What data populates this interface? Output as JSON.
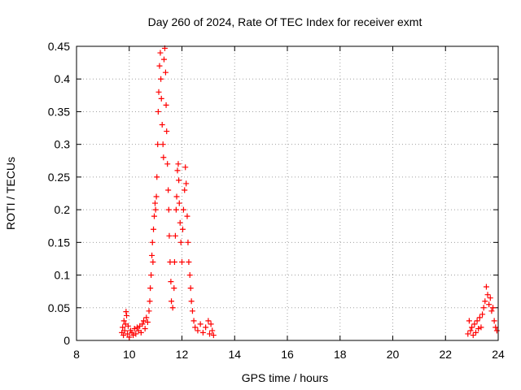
{
  "chart_data": {
    "type": "scatter",
    "title": "Day 260 of 2024, Rate Of TEC Index for receiver exmt",
    "xlabel": "GPS time / hours",
    "ylabel": "ROTI / TECUs",
    "xlim": [
      8,
      24
    ],
    "ylim": [
      0,
      0.45
    ],
    "xticks": [
      "8",
      "10",
      "12",
      "14",
      "16",
      "18",
      "20",
      "22",
      "24"
    ],
    "yticks": [
      "0",
      "0.05",
      "0.1",
      "0.15",
      "0.2",
      "0.25",
      "0.3",
      "0.35",
      "0.4",
      "0.45"
    ],
    "grid": true,
    "marker": "plus",
    "series": [
      {
        "color": "#ff0000",
        "points": [
          [
            9.72,
            0.012
          ],
          [
            9.75,
            0.02
          ],
          [
            9.78,
            0.008
          ],
          [
            9.8,
            0.03
          ],
          [
            9.83,
            0.015
          ],
          [
            9.86,
            0.025
          ],
          [
            9.88,
            0.044
          ],
          [
            9.9,
            0.038
          ],
          [
            9.93,
            0.01
          ],
          [
            9.96,
            0.022
          ],
          [
            10.0,
            0.005
          ],
          [
            10.05,
            0.015
          ],
          [
            10.1,
            0.012
          ],
          [
            10.15,
            0.008
          ],
          [
            10.2,
            0.018
          ],
          [
            10.25,
            0.01
          ],
          [
            10.3,
            0.02
          ],
          [
            10.35,
            0.015
          ],
          [
            10.4,
            0.022
          ],
          [
            10.45,
            0.012
          ],
          [
            10.5,
            0.025
          ],
          [
            10.55,
            0.03
          ],
          [
            10.6,
            0.018
          ],
          [
            10.65,
            0.035
          ],
          [
            10.7,
            0.028
          ],
          [
            10.75,
            0.045
          ],
          [
            10.78,
            0.06
          ],
          [
            10.8,
            0.08
          ],
          [
            10.83,
            0.1
          ],
          [
            10.86,
            0.13
          ],
          [
            10.88,
            0.15
          ],
          [
            10.9,
            0.12
          ],
          [
            10.92,
            0.17
          ],
          [
            10.95,
            0.19
          ],
          [
            10.98,
            0.21
          ],
          [
            11.0,
            0.2
          ],
          [
            11.03,
            0.22
          ],
          [
            11.05,
            0.25
          ],
          [
            11.08,
            0.3
          ],
          [
            11.1,
            0.35
          ],
          [
            11.12,
            0.38
          ],
          [
            11.15,
            0.42
          ],
          [
            11.18,
            0.44
          ],
          [
            11.2,
            0.4
          ],
          [
            11.22,
            0.37
          ],
          [
            11.25,
            0.33
          ],
          [
            11.28,
            0.3
          ],
          [
            11.3,
            0.28
          ],
          [
            11.32,
            0.43
          ],
          [
            11.35,
            0.447
          ],
          [
            11.38,
            0.41
          ],
          [
            11.4,
            0.36
          ],
          [
            11.42,
            0.32
          ],
          [
            11.45,
            0.27
          ],
          [
            11.48,
            0.23
          ],
          [
            11.5,
            0.2
          ],
          [
            11.52,
            0.16
          ],
          [
            11.55,
            0.12
          ],
          [
            11.58,
            0.09
          ],
          [
            11.6,
            0.06
          ],
          [
            11.65,
            0.05
          ],
          [
            11.7,
            0.08
          ],
          [
            11.72,
            0.12
          ],
          [
            11.75,
            0.16
          ],
          [
            11.78,
            0.2
          ],
          [
            11.8,
            0.22
          ],
          [
            11.83,
            0.26
          ],
          [
            11.86,
            0.27
          ],
          [
            11.88,
            0.245
          ],
          [
            11.9,
            0.21
          ],
          [
            11.93,
            0.18
          ],
          [
            11.96,
            0.15
          ],
          [
            12.0,
            0.12
          ],
          [
            12.03,
            0.17
          ],
          [
            12.06,
            0.2
          ],
          [
            12.1,
            0.23
          ],
          [
            12.13,
            0.265
          ],
          [
            12.16,
            0.24
          ],
          [
            12.2,
            0.19
          ],
          [
            12.23,
            0.15
          ],
          [
            12.26,
            0.12
          ],
          [
            12.3,
            0.1
          ],
          [
            12.33,
            0.08
          ],
          [
            12.36,
            0.06
          ],
          [
            12.4,
            0.045
          ],
          [
            12.45,
            0.03
          ],
          [
            12.5,
            0.02
          ],
          [
            12.6,
            0.015
          ],
          [
            12.7,
            0.025
          ],
          [
            12.8,
            0.012
          ],
          [
            12.9,
            0.02
          ],
          [
            13.0,
            0.03
          ],
          [
            13.05,
            0.01
          ],
          [
            13.1,
            0.025
          ],
          [
            13.15,
            0.015
          ],
          [
            13.2,
            0.008
          ],
          [
            22.85,
            0.01
          ],
          [
            22.9,
            0.03
          ],
          [
            22.95,
            0.015
          ],
          [
            23.0,
            0.02
          ],
          [
            23.05,
            0.008
          ],
          [
            23.1,
            0.025
          ],
          [
            23.15,
            0.012
          ],
          [
            23.2,
            0.03
          ],
          [
            23.25,
            0.018
          ],
          [
            23.3,
            0.035
          ],
          [
            23.35,
            0.02
          ],
          [
            23.4,
            0.04
          ],
          [
            23.45,
            0.05
          ],
          [
            23.5,
            0.06
          ],
          [
            23.55,
            0.082
          ],
          [
            23.6,
            0.07
          ],
          [
            23.65,
            0.055
          ],
          [
            23.7,
            0.065
          ],
          [
            23.75,
            0.045
          ],
          [
            23.8,
            0.05
          ],
          [
            23.85,
            0.03
          ],
          [
            23.9,
            0.02
          ],
          [
            23.95,
            0.015
          ]
        ]
      }
    ]
  }
}
